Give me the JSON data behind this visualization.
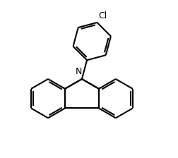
{
  "background_color": "#ffffff",
  "line_color": "#000000",
  "line_width": 1.5,
  "font_size": 9,
  "cl_label": "Cl",
  "n_label": "N",
  "figsize": [
    2.52,
    2.24
  ],
  "dpi": 100,
  "xlim": [
    -1.6,
    2.0
  ],
  "ylim": [
    -2.2,
    2.2
  ]
}
